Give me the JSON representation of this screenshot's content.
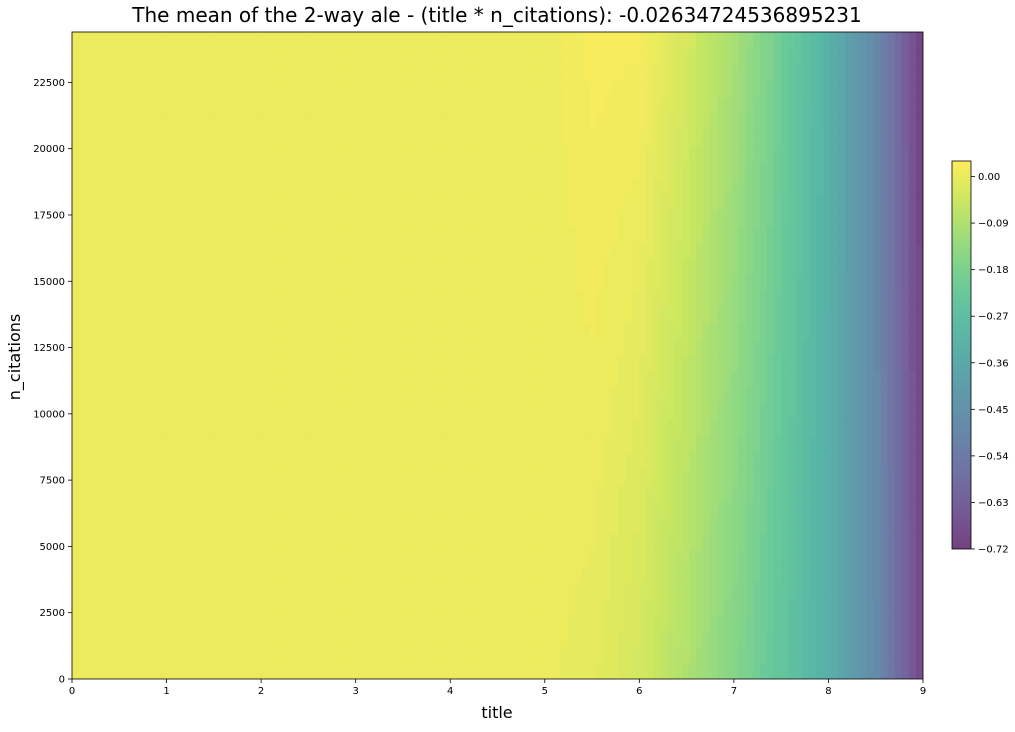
{
  "chart_data": {
    "type": "heatmap",
    "subtype": "filled-contour",
    "title": "The mean of the 2-way ale - (title * n_citations): -0.02634724536895231",
    "xlabel": "title",
    "ylabel": "n_citations",
    "xlim": [
      0,
      9
    ],
    "ylim": [
      0,
      24400
    ],
    "x_ticks": [
      "0",
      "1",
      "2",
      "3",
      "4",
      "5",
      "6",
      "7",
      "8",
      "9"
    ],
    "y_ticks": [
      "0",
      "2500",
      "5000",
      "7500",
      "10000",
      "12500",
      "15000",
      "17500",
      "20000",
      "22500"
    ],
    "colorbar": {
      "colormap": "viridis",
      "alpha": 0.75,
      "range": [
        -0.72,
        0.03
      ],
      "ticks": [
        "0.00",
        "-0.09",
        "-0.18",
        "-0.27",
        "-0.36",
        "-0.45",
        "-0.54",
        "-0.63",
        "-0.72"
      ],
      "tick_values": [
        0.0,
        -0.09,
        -0.18,
        -0.27,
        -0.36,
        -0.45,
        -0.54,
        -0.63,
        -0.72
      ]
    },
    "grid": false,
    "series": [
      {
        "description": "ALE value vs title, at n_citations = 0 and n_citations = 24400",
        "title_values": [
          0,
          5,
          5.5,
          6,
          6.5,
          7,
          7.5,
          8,
          8.5,
          9
        ],
        "ale_at_n0": [
          0.0,
          0.0,
          -0.008,
          -0.035,
          -0.09,
          -0.16,
          -0.24,
          -0.33,
          -0.48,
          -0.7
        ],
        "ale_at_nmax": [
          0.0,
          0.0,
          0.02,
          0.018,
          -0.03,
          -0.1,
          -0.2,
          -0.32,
          -0.49,
          -0.72
        ]
      }
    ]
  }
}
